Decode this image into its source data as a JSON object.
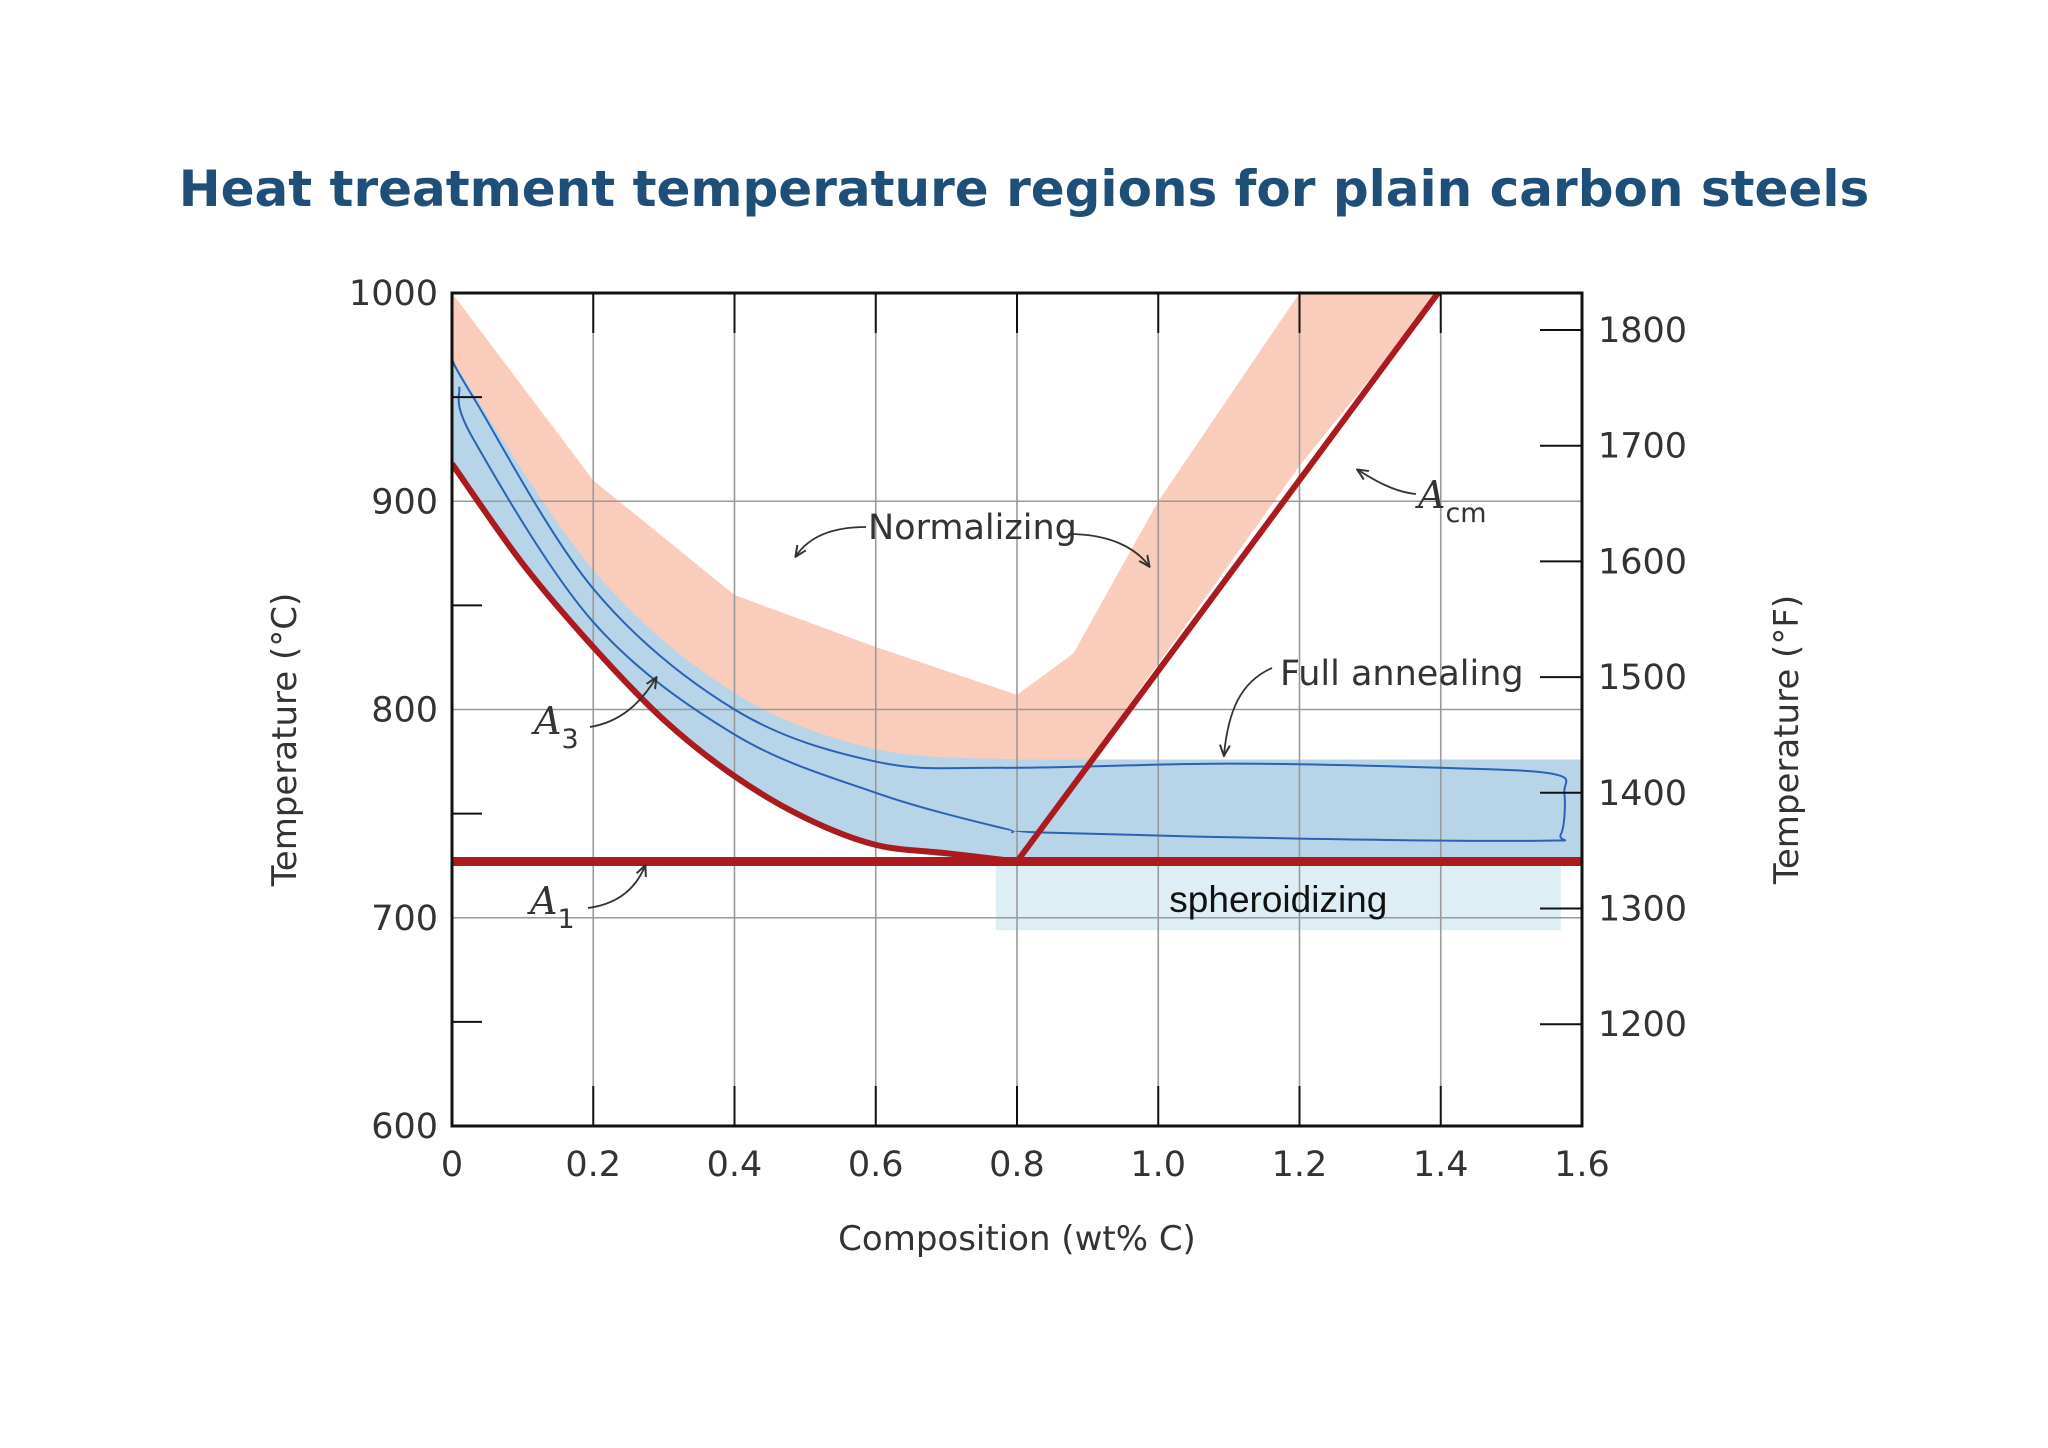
{
  "title": "Heat treatment temperature regions for plain carbon steels",
  "chart_data": {
    "type": "area",
    "xlabel": "Composition (wt% C)",
    "ylabel": "Temperature (°C)",
    "y2label": "Temperature (°F)",
    "xlim": [
      0,
      1.6
    ],
    "ylim": [
      600,
      1000
    ],
    "y2lim": [
      1112,
      1832
    ],
    "grid": true,
    "x_ticks": [
      "0",
      "0.2",
      "0.4",
      "0.6",
      "0.8",
      "1.0",
      "1.2",
      "1.4",
      "1.6"
    ],
    "x_tick_values": [
      0,
      0.2,
      0.4,
      0.6,
      0.8,
      1.0,
      1.2,
      1.4,
      1.6
    ],
    "y_ticks": [
      "600",
      "700",
      "800",
      "900",
      "1000"
    ],
    "y_tick_values": [
      600,
      700,
      800,
      900,
      1000
    ],
    "y2_ticks": [
      "1200",
      "1300",
      "1400",
      "1500",
      "1600",
      "1700",
      "1800"
    ],
    "y2_tick_values": [
      1200,
      1300,
      1400,
      1500,
      1600,
      1700,
      1800
    ],
    "lines": {
      "A3": {
        "x": [
          0,
          0.1,
          0.2,
          0.3,
          0.4,
          0.5,
          0.6,
          0.7,
          0.8
        ],
        "y": [
          918,
          870,
          830,
          795,
          768,
          748,
          735,
          731,
          727
        ]
      },
      "Acm": {
        "x": [
          0.8,
          1.0,
          1.2,
          1.4,
          1.49
        ],
        "y": [
          727,
          822,
          917,
          1001,
          1043
        ]
      },
      "A1": {
        "x": [
          0,
          1.6
        ],
        "y": [
          727,
          727
        ]
      }
    },
    "regions": {
      "Normalizing": {
        "lower": {
          "x": [
            0,
            0.2,
            0.4,
            0.6,
            0.8,
            0.88,
            1.0,
            1.2,
            1.4,
            1.49
          ],
          "y": [
            918,
            830,
            768,
            735,
            727,
            765,
            822,
            917,
            1001,
            1043
          ]
        },
        "upper": {
          "x": [
            0,
            0.2,
            0.4,
            0.6,
            0.8,
            0.88,
            1.0,
            1.2,
            1.4,
            1.49
          ],
          "y": [
            1000,
            910,
            855,
            830,
            807,
            827,
            900,
            1000,
            1043,
            1043
          ]
        },
        "color": "#f9ccbb"
      },
      "Full annealing": {
        "upper": {
          "x": [
            0,
            0.2,
            0.4,
            0.6,
            0.8,
            1.6
          ],
          "y": [
            968,
            867,
            808,
            781,
            776,
            776
          ]
        },
        "lower": {
          "x": [
            0,
            0.2,
            0.4,
            0.6,
            0.8,
            1.6
          ],
          "y": [
            918,
            830,
            768,
            735,
            727,
            727
          ]
        },
        "color": "#b8d4e8"
      },
      "spheroidizing": {
        "x": [
          0.77,
          1.57
        ],
        "y": [
          694,
          727
        ],
        "color": "#deeef5"
      }
    },
    "annotations": {
      "normalizing": "Normalizing",
      "full_annealing": "Full annealing",
      "spheroidizing": "spheroidizing",
      "a3": {
        "symbol": "A",
        "sub": "3"
      },
      "a1": {
        "symbol": "A",
        "sub": "1"
      },
      "acm": {
        "symbol": "A",
        "sub": "cm"
      }
    },
    "colors": {
      "phase_line": "#aa1a1f",
      "full_annealing_outline": "#2a62b4",
      "grid": "#9a9a9a",
      "axis": "#111111"
    }
  }
}
